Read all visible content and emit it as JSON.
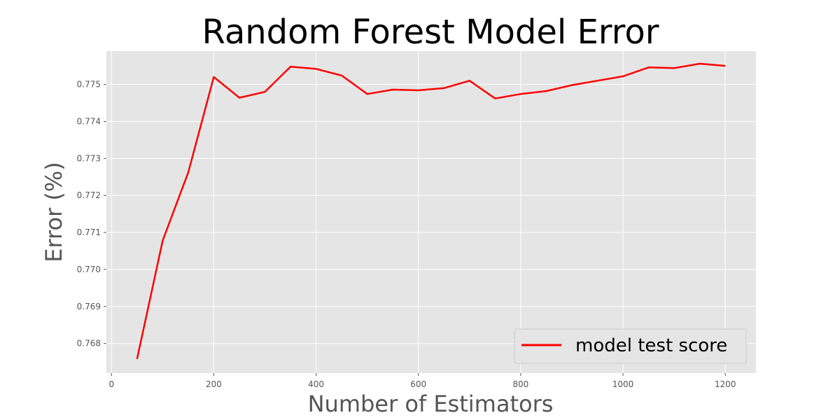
{
  "chart_data": {
    "type": "line",
    "title": "Random Forest Model Error",
    "xlabel": "Number of Estimators",
    "ylabel": "Error (%)",
    "xlim": [
      -10,
      1260
    ],
    "ylim": [
      0.7672,
      0.7759
    ],
    "xticks": [
      0,
      200,
      400,
      600,
      800,
      1000,
      1200
    ],
    "xtick_labels": [
      "0",
      "200",
      "400",
      "600",
      "800",
      "1000",
      "1200"
    ],
    "yticks": [
      0.768,
      0.769,
      0.77,
      0.771,
      0.772,
      0.773,
      0.774,
      0.775
    ],
    "ytick_labels": [
      "0.768",
      "0.769",
      "0.770",
      "0.771",
      "0.772",
      "0.773",
      "0.774",
      "0.775"
    ],
    "grid": true,
    "legend_position": "lower-right",
    "series": [
      {
        "name": "model test score",
        "color": "#ff0000",
        "x": [
          50,
          100,
          150,
          200,
          250,
          300,
          350,
          400,
          450,
          500,
          550,
          600,
          650,
          700,
          750,
          800,
          850,
          900,
          950,
          1000,
          1050,
          1100,
          1150,
          1200
        ],
        "y": [
          0.76758,
          0.77078,
          0.77262,
          0.7752,
          0.77464,
          0.7748,
          0.77548,
          0.77542,
          0.77524,
          0.77474,
          0.77486,
          0.77484,
          0.7749,
          0.7751,
          0.77462,
          0.77474,
          0.77482,
          0.77498,
          0.7751,
          0.77522,
          0.77546,
          0.77544,
          0.77556,
          0.7755
        ]
      }
    ]
  }
}
